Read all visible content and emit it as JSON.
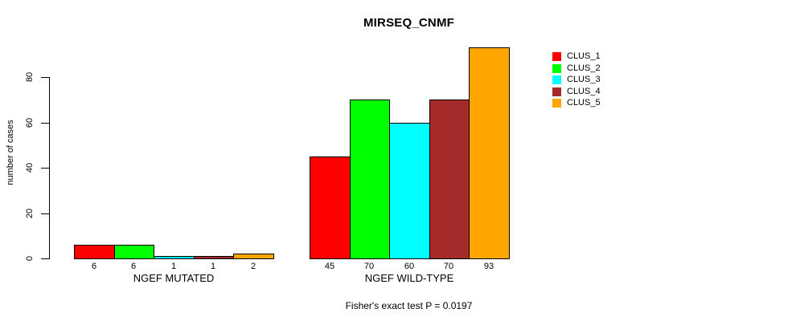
{
  "page": {
    "background": "#ffffff"
  },
  "chart_data": {
    "type": "bar",
    "title": "MIRSEQ_CNMF",
    "ylabel": "number of cases",
    "xlabel": "",
    "annotation": "Fisher's exact test P = 0.0197",
    "ylim": [
      0,
      93
    ],
    "yticks": [
      0,
      20,
      40,
      60,
      80
    ],
    "grid": false,
    "legend_position": "right",
    "bar_border_color": "#000000",
    "axis_color": "#000000",
    "series": [
      {
        "name": "CLUS_1",
        "color": "#FF0000"
      },
      {
        "name": "CLUS_2",
        "color": "#00FF00"
      },
      {
        "name": "CLUS_3",
        "color": "#00FFFF"
      },
      {
        "name": "CLUS_4",
        "color": "#A52A2A"
      },
      {
        "name": "CLUS_5",
        "color": "#FFA500"
      }
    ],
    "groups": [
      {
        "label": "NGEF MUTATED",
        "values": [
          6,
          6,
          1,
          1,
          2
        ]
      },
      {
        "label": "NGEF WILD-TYPE",
        "values": [
          45,
          70,
          60,
          70,
          93
        ]
      }
    ]
  }
}
